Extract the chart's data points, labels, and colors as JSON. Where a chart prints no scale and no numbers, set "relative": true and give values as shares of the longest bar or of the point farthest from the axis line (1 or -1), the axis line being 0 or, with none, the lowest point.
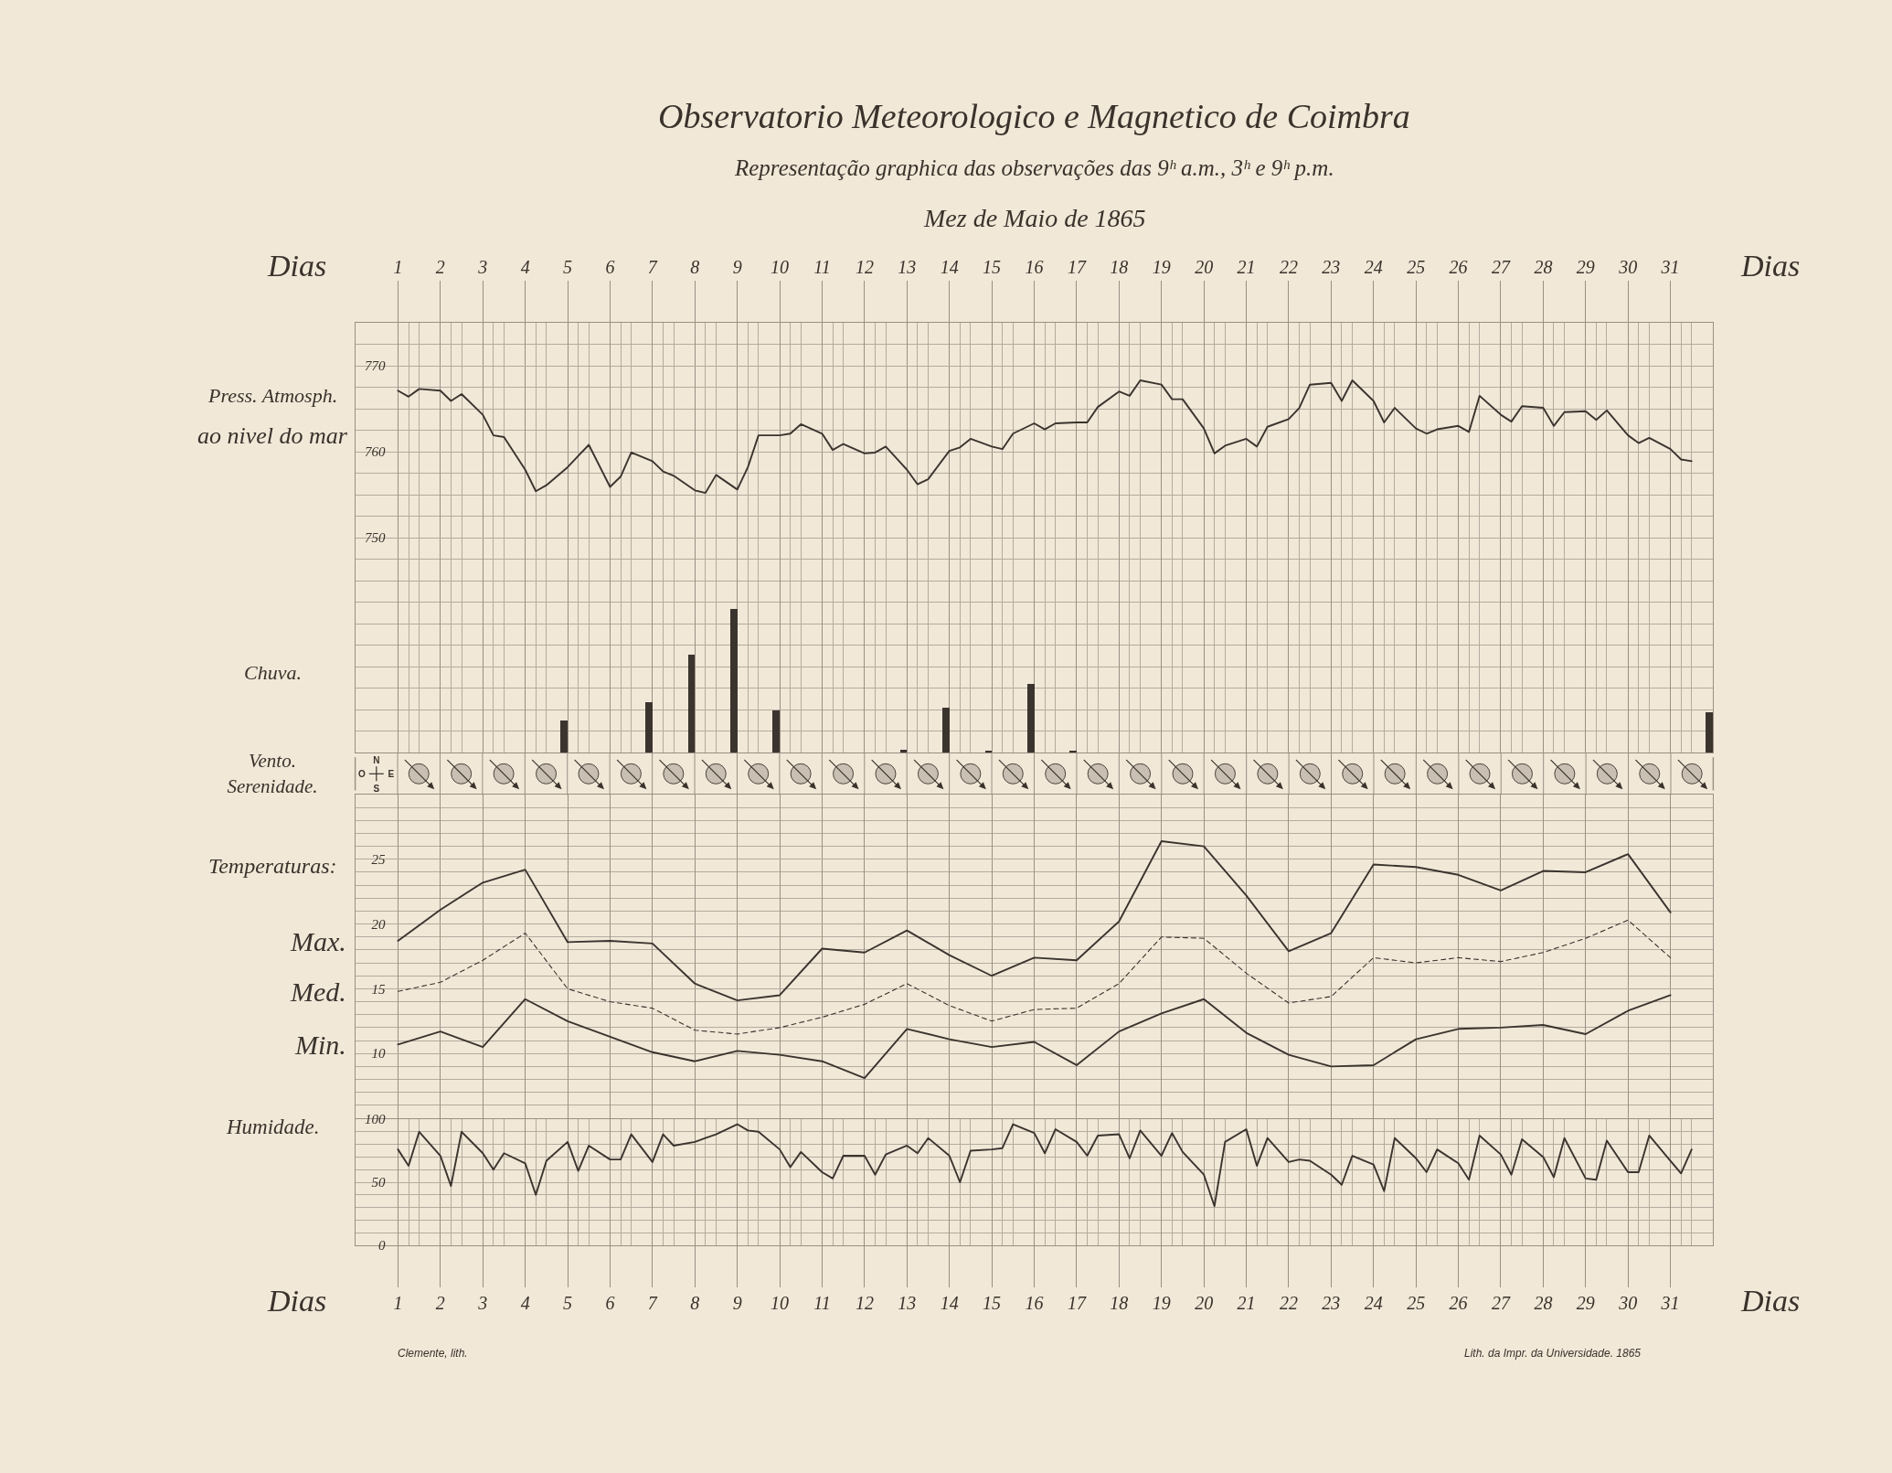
{
  "chart_data": [
    {
      "type": "line",
      "title": "Observatorio Meteorologico e Magnetico de Coimbra",
      "subtitle": "Representação graphica das observações das 9ʰ a.m., 3ʰ e 9ʰ p.m.\nMez de Maio de 1865",
      "xlabel": "Dias",
      "ylabel": "Press. Atmosph.\nao nivel do mar",
      "x": [
        1,
        1.25,
        1.5,
        2,
        2.25,
        2.5,
        3,
        3.25,
        3.5,
        4,
        4.25,
        4.5,
        5,
        5.25,
        5.5,
        6,
        6.25,
        6.5,
        7,
        7.25,
        7.5,
        8,
        8.25,
        8.5,
        9,
        9.25,
        9.5,
        10,
        10.25,
        10.5,
        11,
        11.25,
        11.5,
        12,
        12.25,
        12.5,
        13,
        13.25,
        13.5,
        14,
        14.25,
        14.5,
        15,
        15.25,
        15.5,
        16,
        16.25,
        16.5,
        17,
        17.25,
        17.5,
        18,
        18.25,
        18.5,
        19,
        19.25,
        19.5,
        20,
        20.25,
        20.5,
        21,
        21.25,
        21.5,
        22,
        22.25,
        22.5,
        23,
        23.25,
        23.5,
        24,
        24.25,
        24.5,
        25,
        25.25,
        25.5,
        26,
        26.25,
        26.5,
        27,
        27.25,
        27.5,
        28,
        28.25,
        28.5,
        29,
        29.25,
        29.5,
        30,
        30.25,
        30.5,
        31,
        31.25,
        31.5
      ],
      "series": [
        {
          "color": "#3b342e",
          "values": [
            767.1,
            766.4,
            767.3,
            767.1,
            765.9,
            766.7,
            764.3,
            761.9,
            761.7,
            757.9,
            755.4,
            756.1,
            758.2,
            759.5,
            760.8,
            755.9,
            757.1,
            759.9,
            758.9,
            757.7,
            757.2,
            755.5,
            755.2,
            757.3,
            755.6,
            758.2,
            761.9,
            761.9,
            762.1,
            763.2,
            762.1,
            760.2,
            760.9,
            759.8,
            759.9,
            760.6,
            757.9,
            756.2,
            756.8,
            760.1,
            760.5,
            761.5,
            760.6,
            760.3,
            762.1,
            763.3,
            762.6,
            763.3,
            763.4,
            763.4,
            765.2,
            767.0,
            766.5,
            768.3,
            767.8,
            766.1,
            766.1,
            762.7,
            759.8,
            760.7,
            761.5,
            760.6,
            762.9,
            763.8,
            765.1,
            767.8,
            768.0,
            765.9,
            768.3,
            765.9,
            763.4,
            765.1,
            762.7,
            762.1,
            762.6,
            763.0,
            762.3,
            766.5,
            764.3,
            763.5,
            765.3,
            765.1,
            763.0,
            764.6,
            764.7,
            763.7,
            764.8,
            761.9,
            761.0,
            761.6,
            760.3,
            759.1,
            758.9
          ]
        }
      ],
      "xlim": [
        0,
        32
      ],
      "ylim": [
        725,
        775
      ],
      "xticks": [
        1,
        {
          "value": 1.25,
          "label": null
        },
        {
          "value": 1.5,
          "label": null
        },
        2,
        {
          "value": 2.25,
          "label": null
        },
        {
          "value": 2.5,
          "label": null
        },
        3,
        {
          "value": 3.25,
          "label": null
        },
        {
          "value": 3.5,
          "label": null
        },
        4,
        {
          "value": 4.25,
          "label": null
        },
        {
          "value": 4.5,
          "label": null
        },
        5,
        {
          "value": 5.25,
          "label": null
        },
        {
          "value": 5.5,
          "label": null
        },
        6,
        {
          "value": 6.25,
          "label": null
        },
        {
          "value": 6.5,
          "label": null
        },
        7,
        {
          "value": 7.25,
          "label": null
        },
        {
          "value": 7.5,
          "label": null
        },
        8,
        {
          "value": 8.25,
          "label": null
        },
        {
          "value": 8.5,
          "label": null
        },
        9,
        {
          "value": 9.25,
          "label": null
        },
        {
          "value": 9.5,
          "label": null
        },
        10,
        {
          "value": 10.25,
          "label": null
        },
        {
          "value": 10.5,
          "label": null
        },
        11,
        {
          "value": 11.25,
          "label": null
        },
        {
          "value": 11.5,
          "label": null
        },
        12,
        {
          "value": 12.25,
          "label": null
        },
        {
          "value": 12.5,
          "label": null
        },
        13,
        {
          "value": 13.25,
          "label": null
        },
        {
          "value": 13.5,
          "label": null
        },
        14,
        {
          "value": 14.25,
          "label": null
        },
        {
          "value": 14.5,
          "label": null
        },
        15,
        {
          "value": 15.25,
          "label": null
        },
        {
          "value": 15.5,
          "label": null
        },
        16,
        {
          "value": 16.25,
          "label": null
        },
        {
          "value": 16.5,
          "label": null
        },
        17,
        {
          "value": 17.25,
          "label": null
        },
        {
          "value": 17.5,
          "label": null
        },
        18,
        {
          "value": 18.25,
          "label": null
        },
        {
          "value": 18.5,
          "label": null
        },
        19,
        {
          "value": 19.25,
          "label": null
        },
        {
          "value": 19.5,
          "label": null
        },
        20,
        {
          "value": 20.25,
          "label": null
        },
        {
          "value": 20.5,
          "label": null
        },
        21,
        {
          "value": 21.25,
          "label": null
        },
        {
          "value": 21.5,
          "label": null
        },
        22,
        {
          "value": 22.25,
          "label": null
        },
        {
          "value": 22.5,
          "label": null
        },
        23,
        {
          "value": 23.25,
          "label": null
        },
        {
          "value": 23.5,
          "label": null
        },
        24,
        {
          "value": 24.25,
          "label": null
        },
        {
          "value": 24.5,
          "label": null
        },
        25,
        {
          "value": 25.25,
          "label": null
        },
        {
          "value": 25.5,
          "label": null
        },
        26,
        {
          "value": 26.25,
          "label": null
        },
        {
          "value": 26.5,
          "label": null
        },
        27,
        {
          "value": 27.25,
          "label": null
        },
        {
          "value": 27.5,
          "label": null
        },
        28,
        {
          "value": 28.25,
          "label": null
        },
        {
          "value": 28.5,
          "label": null
        },
        29,
        {
          "value": 29.25,
          "label": null
        },
        {
          "value": 29.5,
          "label": null
        },
        30,
        {
          "value": 30.25,
          "label": null
        },
        {
          "value": 30.5,
          "label": null
        },
        31,
        {
          "value": 31.25,
          "label": null
        },
        {
          "value": 31.5,
          "label": null
        }
      ],
      "yticks": [
        {
          "value": 727.5,
          "label": null
        },
        {
          "value": 730,
          "label": null
        },
        {
          "value": 732.5,
          "label": null
        },
        {
          "value": 735,
          "label": null
        },
        {
          "value": 737.5,
          "label": null
        },
        {
          "value": 740,
          "label": null
        },
        {
          "value": 742.5,
          "label": null
        },
        {
          "value": 745,
          "label": null
        },
        {
          "value": 747.5,
          "label": null
        },
        750,
        {
          "value": 752.5,
          "label": null
        },
        {
          "value": 755,
          "label": null
        },
        {
          "value": 757.5,
          "label": null
        },
        760,
        {
          "value": 762.5,
          "label": null
        },
        {
          "value": 765,
          "label": null
        },
        {
          "value": 767.5,
          "label": null
        },
        770,
        {
          "value": 772.5,
          "label": null
        }
      ],
      "grid": true
    },
    {
      "type": "bar",
      "ylabel": "Chuva.",
      "relative": true,
      "x": [
        5,
        7,
        8,
        9,
        10,
        13,
        14,
        15,
        16,
        17,
        32
      ],
      "series": [
        {
          "color": "#3b342e",
          "values": [
            0.22,
            0.35,
            0.68,
            1,
            0.29,
            0.02,
            0.31,
            0.01,
            0.48,
            0.01,
            0.28
          ]
        }
      ],
      "xlim": [
        0,
        32
      ],
      "tick_labels": false
    },
    {
      "type": "other",
      "ylabel": "Vento.\nSerenidade.",
      "annotations": [
        "N",
        "S",
        "O",
        "E"
      ]
    },
    {
      "type": "line",
      "ylabel": "Temperaturas:",
      "x": [
        1,
        2,
        3,
        4,
        5,
        6,
        7,
        8,
        9,
        10,
        11,
        12,
        13,
        14,
        15,
        16,
        17,
        18,
        19,
        20,
        21,
        22,
        23,
        24,
        25,
        26,
        27,
        28,
        29,
        30,
        31
      ],
      "series": [
        {
          "name": "Max.",
          "color": "#3b342e",
          "values": [
            18.7,
            21.1,
            23.2,
            24.2,
            18.6,
            18.7,
            18.5,
            15.4,
            14.1,
            14.5,
            18.1,
            17.8,
            19.5,
            17.6,
            16.0,
            17.4,
            17.2,
            20.2,
            26.4,
            26.0,
            22.2,
            17.9,
            19.3,
            24.6,
            24.4,
            23.8,
            22.6,
            24.1,
            24.0,
            25.4,
            20.9
          ]
        },
        {
          "name": "Med.",
          "color": "#3b342e",
          "line_style": "dashed",
          "values": [
            14.8,
            15.5,
            17.2,
            19.3,
            15.0,
            14.0,
            13.5,
            11.8,
            11.5,
            12.0,
            12.8,
            13.8,
            15.4,
            13.7,
            12.5,
            13.4,
            13.5,
            15.4,
            19.0,
            18.9,
            16.2,
            13.9,
            14.4,
            17.4,
            17.0,
            17.4,
            17.1,
            17.8,
            18.9,
            20.3,
            17.4
          ]
        },
        {
          "name": "Min.",
          "color": "#3b342e",
          "values": [
            10.7,
            11.7,
            10.5,
            14.2,
            12.5,
            11.3,
            10.1,
            9.4,
            10.2,
            9.9,
            9.4,
            8.1,
            11.9,
            11.1,
            10.5,
            10.9,
            9.1,
            11.7,
            13.1,
            14.2,
            11.6,
            9.9,
            9.0,
            9.1,
            11.1,
            11.9,
            12.0,
            12.2,
            11.5,
            13.3,
            14.5
          ]
        }
      ],
      "xlim": [
        0,
        32
      ],
      "ylim": [
        5,
        30
      ],
      "xticks": [
        1,
        2,
        3,
        4,
        5,
        6,
        7,
        8,
        9,
        10,
        11,
        12,
        13,
        14,
        15,
        16,
        17,
        18,
        19,
        20,
        21,
        22,
        23,
        24,
        25,
        26,
        27,
        28,
        29,
        30,
        31
      ],
      "yticks": [
        {
          "value": 6,
          "label": null
        },
        {
          "value": 7,
          "label": null
        },
        {
          "value": 8,
          "label": null
        },
        {
          "value": 9,
          "label": null
        },
        10,
        {
          "value": 11,
          "label": null
        },
        {
          "value": 12,
          "label": null
        },
        {
          "value": 13,
          "label": null
        },
        {
          "value": 14,
          "label": null
        },
        15,
        {
          "value": 16,
          "label": null
        },
        {
          "value": 17,
          "label": null
        },
        {
          "value": 18,
          "label": null
        },
        {
          "value": 19,
          "label": null
        },
        20,
        {
          "value": 21,
          "label": null
        },
        {
          "value": 22,
          "label": null
        },
        {
          "value": 23,
          "label": null
        },
        {
          "value": 24,
          "label": null
        },
        25,
        {
          "value": 26,
          "label": null
        },
        {
          "value": 27,
          "label": null
        },
        {
          "value": 28,
          "label": null
        },
        {
          "value": 29,
          "label": null
        }
      ],
      "grid": true,
      "tick_labels": "y",
      "line_style": "solid"
    },
    {
      "type": "line",
      "ylabel": "Humidade.",
      "xlabel": "Dias",
      "x": [
        1,
        1.25,
        1.5,
        2,
        2.25,
        2.5,
        3,
        3.25,
        3.5,
        4,
        4.25,
        4.5,
        5,
        5.25,
        5.5,
        6,
        6.25,
        6.5,
        7,
        7.25,
        7.5,
        8,
        8.25,
        8.5,
        9,
        9.25,
        9.5,
        10,
        10.25,
        10.5,
        11,
        11.25,
        11.5,
        12,
        12.25,
        12.5,
        13,
        13.25,
        13.5,
        14,
        14.25,
        14.5,
        15,
        15.25,
        15.5,
        16,
        16.25,
        16.5,
        17,
        17.25,
        17.5,
        18,
        18.25,
        18.5,
        19,
        19.25,
        19.5,
        20,
        20.25,
        20.5,
        21,
        21.25,
        21.5,
        22,
        22.25,
        22.5,
        23,
        23.25,
        23.5,
        24,
        24.25,
        24.5,
        25,
        25.25,
        25.5,
        26,
        26.25,
        26.5,
        27,
        27.25,
        27.5,
        28,
        28.25,
        28.5,
        29,
        29.25,
        29.5,
        30,
        30.25,
        30.5,
        31,
        31.25,
        31.5
      ],
      "series": [
        {
          "color": "#3b342e",
          "values": [
            76,
            63,
            90,
            71,
            47,
            90,
            73,
            60,
            73,
            65,
            40,
            67,
            82,
            59,
            79,
            68,
            68,
            88,
            66,
            88,
            79,
            82,
            85,
            88,
            96,
            91,
            90,
            76,
            62,
            74,
            58,
            53,
            71,
            71,
            56,
            72,
            79,
            73,
            85,
            71,
            50,
            75,
            76,
            77,
            96,
            89,
            73,
            92,
            82,
            71,
            87,
            88,
            69,
            91,
            71,
            89,
            74,
            56,
            31,
            82,
            92,
            63,
            85,
            66,
            68,
            67,
            56,
            48,
            71,
            64,
            43,
            85,
            69,
            58,
            76,
            65,
            52,
            87,
            72,
            56,
            84,
            70,
            54,
            85,
            53,
            52,
            83,
            58,
            58,
            87,
            67,
            57,
            76
          ]
        }
      ],
      "xlim": [
        0,
        32
      ],
      "ylim": [
        0,
        100
      ],
      "xticks": [
        1,
        {
          "value": 1.25,
          "label": null
        },
        {
          "value": 1.5,
          "label": null
        },
        2,
        {
          "value": 2.25,
          "label": null
        },
        {
          "value": 2.5,
          "label": null
        },
        3,
        {
          "value": 3.25,
          "label": null
        },
        {
          "value": 3.5,
          "label": null
        },
        4,
        {
          "value": 4.25,
          "label": null
        },
        {
          "value": 4.5,
          "label": null
        },
        5,
        {
          "value": 5.25,
          "label": null
        },
        {
          "value": 5.5,
          "label": null
        },
        6,
        {
          "value": 6.25,
          "label": null
        },
        {
          "value": 6.5,
          "label": null
        },
        7,
        {
          "value": 7.25,
          "label": null
        },
        {
          "value": 7.5,
          "label": null
        },
        8,
        {
          "value": 8.25,
          "label": null
        },
        {
          "value": 8.5,
          "label": null
        },
        9,
        {
          "value": 9.25,
          "label": null
        },
        {
          "value": 9.5,
          "label": null
        },
        10,
        {
          "value": 10.25,
          "label": null
        },
        {
          "value": 10.5,
          "label": null
        },
        11,
        {
          "value": 11.25,
          "label": null
        },
        {
          "value": 11.5,
          "label": null
        },
        12,
        {
          "value": 12.25,
          "label": null
        },
        {
          "value": 12.5,
          "label": null
        },
        13,
        {
          "value": 13.25,
          "label": null
        },
        {
          "value": 13.5,
          "label": null
        },
        14,
        {
          "value": 14.25,
          "label": null
        },
        {
          "value": 14.5,
          "label": null
        },
        15,
        {
          "value": 15.25,
          "label": null
        },
        {
          "value": 15.5,
          "label": null
        },
        16,
        {
          "value": 16.25,
          "label": null
        },
        {
          "value": 16.5,
          "label": null
        },
        17,
        {
          "value": 17.25,
          "label": null
        },
        {
          "value": 17.5,
          "label": null
        },
        18,
        {
          "value": 18.25,
          "label": null
        },
        {
          "value": 18.5,
          "label": null
        },
        19,
        {
          "value": 19.25,
          "label": null
        },
        {
          "value": 19.5,
          "label": null
        },
        20,
        {
          "value": 20.25,
          "label": null
        },
        {
          "value": 20.5,
          "label": null
        },
        21,
        {
          "value": 21.25,
          "label": null
        },
        {
          "value": 21.5,
          "label": null
        },
        22,
        {
          "value": 22.25,
          "label": null
        },
        {
          "value": 22.5,
          "label": null
        },
        23,
        {
          "value": 23.25,
          "label": null
        },
        {
          "value": 23.5,
          "label": null
        },
        24,
        {
          "value": 24.25,
          "label": null
        },
        {
          "value": 24.5,
          "label": null
        },
        25,
        {
          "value": 25.25,
          "label": null
        },
        {
          "value": 25.5,
          "label": null
        },
        26,
        {
          "value": 26.25,
          "label": null
        },
        {
          "value": 26.5,
          "label": null
        },
        27,
        {
          "value": 27.25,
          "label": null
        },
        {
          "value": 27.5,
          "label": null
        },
        28,
        {
          "value": 28.25,
          "label": null
        },
        {
          "value": 28.5,
          "label": null
        },
        29,
        {
          "value": 29.25,
          "label": null
        },
        {
          "value": 29.5,
          "label": null
        },
        30,
        {
          "value": 30.25,
          "label": null
        },
        {
          "value": 30.5,
          "label": null
        },
        31,
        {
          "value": 31.25,
          "label": null
        },
        {
          "value": 31.5,
          "label": null
        }
      ],
      "yticks": [
        0,
        {
          "value": 10,
          "label": null
        },
        {
          "value": 20,
          "label": null
        },
        {
          "value": 30,
          "label": null
        },
        {
          "value": 40,
          "label": null
        },
        50,
        {
          "value": 60,
          "label": null
        },
        {
          "value": 70,
          "label": null
        },
        {
          "value": 80,
          "label": null
        },
        {
          "value": 90,
          "label": null
        },
        100
      ],
      "grid": true,
      "annotations": [
        "Clemente, lith.",
        "Lith. da Impr. da Universidade. 1865"
      ]
    }
  ]
}
